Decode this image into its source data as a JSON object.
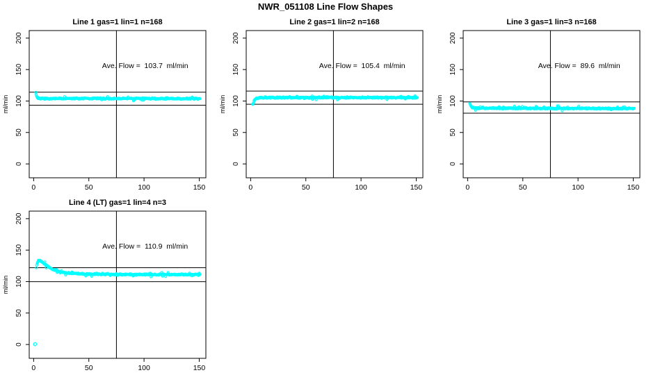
{
  "page_title": "NWR_051108  Line Flow Shapes",
  "colors": {
    "marker": "#00FFFF",
    "axis": "#000000",
    "background": "#FFFFFF",
    "text": "#000000"
  },
  "axes": {
    "ylabel": "ml/min",
    "x_ticks": [
      0,
      50,
      100,
      150
    ],
    "y_ticks": [
      0,
      50,
      100,
      150,
      200
    ],
    "xlim": [
      -4,
      156
    ],
    "ylim": [
      -22,
      212
    ],
    "vline_x": 75
  },
  "chart_data": [
    {
      "type": "scatter",
      "title": "Line 1 gas=1 lin=1 n=168",
      "annotation": "Ave. Flow =  103.7  ml/min",
      "avg_flow": 103.7,
      "unit": "ml/min",
      "ref_lines": [
        114.1,
        93.3
      ],
      "x_range": [
        2,
        151
      ],
      "trace_keypoints": [
        [
          2,
          115
        ],
        [
          2.6,
          107.5
        ],
        [
          3.5,
          104.8
        ],
        [
          6,
          104
        ],
        [
          20,
          103.8
        ],
        [
          50,
          104
        ],
        [
          75,
          103.9
        ],
        [
          100,
          104
        ],
        [
          125,
          103.8
        ],
        [
          151,
          103.9
        ]
      ],
      "extra_points": []
    },
    {
      "type": "scatter",
      "title": "Line 2 gas=1 lin=2 n=168",
      "annotation": "Ave. Flow =  105.4  ml/min",
      "avg_flow": 105.4,
      "unit": "ml/min",
      "ref_lines": [
        115.9,
        94.9
      ],
      "x_range": [
        2,
        151
      ],
      "trace_keypoints": [
        [
          2,
          94.5
        ],
        [
          2.6,
          98
        ],
        [
          3.5,
          101.5
        ],
        [
          5,
          103.8
        ],
        [
          8,
          105.2
        ],
        [
          15,
          105.5
        ],
        [
          50,
          105.4
        ],
        [
          100,
          105.5
        ],
        [
          151,
          105.4
        ]
      ],
      "extra_points": []
    },
    {
      "type": "scatter",
      "title": "Line 3 gas=1 lin=3 n=168",
      "annotation": "Ave. Flow =  89.6  ml/min",
      "avg_flow": 89.6,
      "unit": "ml/min",
      "ref_lines": [
        98.6,
        80.6
      ],
      "x_range": [
        2,
        151
      ],
      "trace_keypoints": [
        [
          2,
          97
        ],
        [
          2.8,
          92.5
        ],
        [
          4,
          90
        ],
        [
          7,
          88.8
        ],
        [
          20,
          88.5
        ],
        [
          60,
          88.4
        ],
        [
          100,
          88.2
        ],
        [
          151,
          88
        ]
      ],
      "extra_points": []
    },
    {
      "type": "scatter",
      "title": "Line 4 (LT) gas=1 lin=4 n=3",
      "annotation": "Ave. Flow =  110.9  ml/min",
      "avg_flow": 110.9,
      "unit": "ml/min",
      "ref_lines": [
        122.0,
        99.8
      ],
      "x_range": [
        2.5,
        151
      ],
      "trace_keypoints": [
        [
          2.5,
          122
        ],
        [
          3,
          128
        ],
        [
          4,
          132.5
        ],
        [
          5.5,
          133.5
        ],
        [
          7,
          132
        ],
        [
          9,
          129
        ],
        [
          12,
          125
        ],
        [
          15,
          121.5
        ],
        [
          18,
          119
        ],
        [
          22,
          116.5
        ],
        [
          26,
          114.8
        ],
        [
          30,
          113.7
        ],
        [
          36,
          112.8
        ],
        [
          45,
          112
        ],
        [
          60,
          111.5
        ],
        [
          80,
          111.3
        ],
        [
          100,
          111.2
        ],
        [
          125,
          111.1
        ],
        [
          151,
          111
        ]
      ],
      "extra_points": [
        [
          1.3,
          0.5
        ]
      ]
    }
  ]
}
